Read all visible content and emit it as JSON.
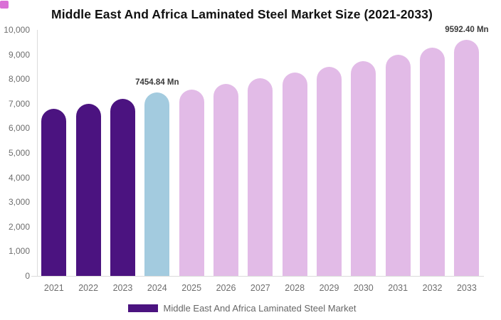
{
  "chart_data": {
    "type": "bar",
    "title": "Middle East And Africa Laminated Steel Market Size (2021-2033)",
    "categories": [
      "2021",
      "2022",
      "2023",
      "2024",
      "2025",
      "2026",
      "2027",
      "2028",
      "2029",
      "2030",
      "2031",
      "2032",
      "2033"
    ],
    "values": [
      6800,
      6980,
      7200,
      7454.84,
      7570,
      7790,
      8030,
      8260,
      8490,
      8720,
      8990,
      9280,
      9592.4
    ],
    "unit": "Mn",
    "xlabel": "",
    "ylabel": "",
    "ylim": [
      0,
      10000
    ],
    "grid": false,
    "y_tick_labels": [
      "0",
      "1,000",
      "2,000",
      "3,000",
      "4,000",
      "5,000",
      "6,000",
      "7,000",
      "8,000",
      "9,000",
      "10,000"
    ],
    "legend_position": "bottom",
    "legend": [
      {
        "label": "Middle East And Africa Laminated Steel Market",
        "color": "#4b1380"
      }
    ],
    "bar_colors": {
      "historical": "#4b1380",
      "base_year": "#a3cbdf",
      "forecast": "#e2bbe7"
    },
    "bar_color_map": [
      "historical",
      "historical",
      "historical",
      "base_year",
      "forecast",
      "forecast",
      "forecast",
      "forecast",
      "forecast",
      "forecast",
      "forecast",
      "forecast",
      "forecast"
    ],
    "data_labels": [
      {
        "category": "2024",
        "text": "7454.84 Mn"
      },
      {
        "category": "2033",
        "text": "9592.40 Mn"
      }
    ]
  },
  "colors": {
    "axis_line": "#dbdbdb",
    "tick_text": "#6e6e6e",
    "title_text": "#111111",
    "data_label_text": "#3a3a3a",
    "legend_text": "#666666",
    "corner_marker": "#da70d6",
    "background": "#ffffff"
  }
}
